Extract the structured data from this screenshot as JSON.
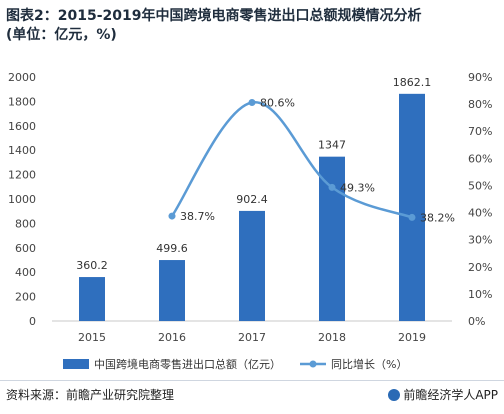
{
  "title_line1": "图表2：2015-2019年中国跨境电商零售进出口总额规模情况分析",
  "title_line2": "(单位：亿元，%)",
  "source": "资料来源：前瞻产业研究院整理",
  "brand": "前瞻经济学人APP",
  "chart_data": {
    "type": "bar",
    "categories": [
      "2015",
      "2016",
      "2017",
      "2018",
      "2019"
    ],
    "series": [
      {
        "name": "中国跨境电商零售进出口总额（亿元）",
        "type": "bar",
        "axis": "left",
        "values": [
          360.2,
          499.6,
          902.4,
          1347,
          1862.1
        ],
        "labels": [
          "360.2",
          "499.6",
          "902.4",
          "1347",
          "1862.1"
        ]
      },
      {
        "name": "同比增长（%）",
        "type": "line",
        "axis": "right",
        "smooth": true,
        "values": [
          null,
          38.7,
          80.6,
          49.3,
          38.2
        ],
        "labels": [
          "",
          "38.7%",
          "80.6%",
          "49.3%",
          "38.2%"
        ]
      }
    ],
    "y_left": {
      "min": 0,
      "max": 2000,
      "ticks": [
        "0",
        "200",
        "400",
        "600",
        "800",
        "1000",
        "1200",
        "1400",
        "1600",
        "1800",
        "2000"
      ]
    },
    "y_right": {
      "min": 0,
      "max": 90,
      "ticks": [
        "0%",
        "10%",
        "20%",
        "30%",
        "40%",
        "50%",
        "60%",
        "70%",
        "80%",
        "90%"
      ]
    },
    "grid": false,
    "legend_position": "bottom",
    "colors": {
      "bar": "#2f6fbe",
      "line": "#5b9bd5"
    }
  }
}
